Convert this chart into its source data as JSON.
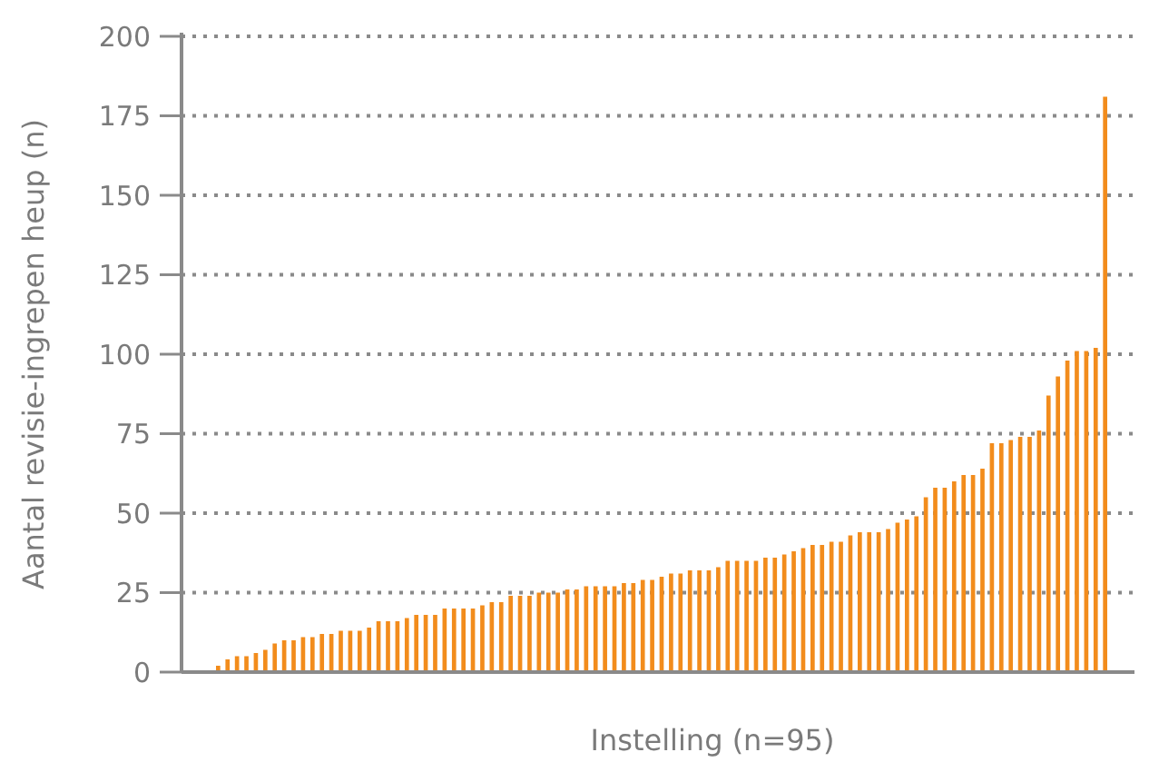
{
  "chart_data": {
    "type": "bar",
    "xlabel": "Instelling (n=95)",
    "ylabel": "Aantal revisie-ingrepen heup (n)",
    "categories": [
      null,
      null,
      null,
      null,
      null,
      null,
      null,
      null,
      null,
      null,
      null,
      null,
      null,
      null,
      null,
      null,
      null,
      null,
      null,
      null,
      null,
      null,
      null,
      null,
      null,
      null,
      null,
      null,
      null,
      null,
      null,
      null,
      null,
      null,
      null,
      null,
      null,
      null,
      null,
      null,
      null,
      null,
      null,
      null,
      null,
      null,
      null,
      null,
      null,
      null,
      null,
      null,
      null,
      null,
      null,
      null,
      null,
      null,
      null,
      null,
      null,
      null,
      null,
      null,
      null,
      null,
      null,
      null,
      null,
      null,
      null,
      null,
      null,
      null,
      null,
      null,
      null,
      null,
      null,
      null,
      null,
      null,
      null,
      null,
      null,
      null,
      null,
      null,
      null,
      null,
      null,
      null,
      null,
      null,
      null
    ],
    "values": [
      2,
      4,
      5,
      5,
      6,
      7,
      9,
      10,
      10,
      11,
      11,
      12,
      12,
      13,
      13,
      13,
      14,
      16,
      16,
      16,
      17,
      18,
      18,
      18,
      20,
      20,
      20,
      20,
      21,
      22,
      22,
      24,
      24,
      24,
      25,
      25,
      25,
      26,
      26,
      27,
      27,
      27,
      27,
      28,
      28,
      29,
      29,
      30,
      31,
      31,
      32,
      32,
      32,
      33,
      35,
      35,
      35,
      35,
      36,
      36,
      37,
      38,
      39,
      40,
      40,
      41,
      41,
      43,
      44,
      44,
      44,
      45,
      47,
      48,
      49,
      55,
      58,
      58,
      60,
      62,
      62,
      64,
      72,
      72,
      73,
      74,
      74,
      76,
      87,
      93,
      98,
      101,
      101,
      102,
      181
    ],
    "color": "#f28c1c",
    "ylim": [
      0,
      200
    ],
    "yticks": [
      0,
      25,
      50,
      75,
      100,
      125,
      150,
      175,
      200
    ],
    "grid": "y"
  }
}
